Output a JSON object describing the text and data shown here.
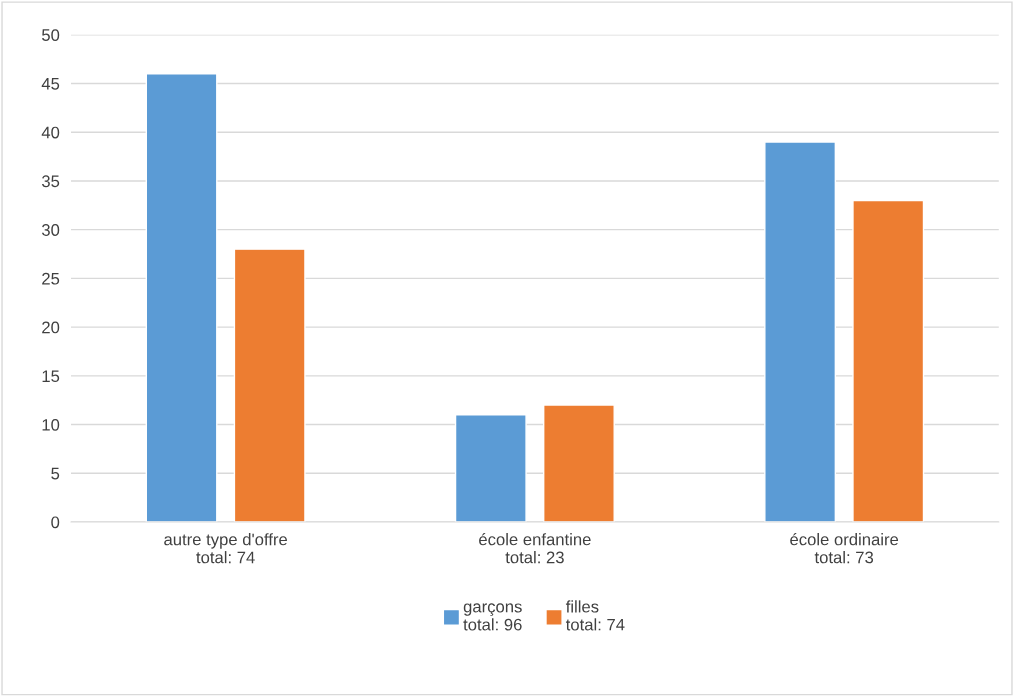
{
  "chart_data": {
    "type": "bar",
    "categories": [
      "autre type d'offre\ntotal: 74",
      "école enfantine\ntotal: 23",
      "école ordinaire\ntotal: 73"
    ],
    "series": [
      {
        "name": "garçons\ntotal: 96",
        "color": "#5b9bd5",
        "values": [
          46,
          11,
          39
        ]
      },
      {
        "name": "filles\ntotal: 74",
        "color": "#ed7d31",
        "values": [
          28,
          12,
          33
        ]
      }
    ],
    "ylim": [
      0,
      50
    ],
    "yticks": [
      0,
      5,
      10,
      15,
      20,
      25,
      30,
      35,
      40,
      45,
      50
    ],
    "grid": "y",
    "legend": "bottom"
  }
}
